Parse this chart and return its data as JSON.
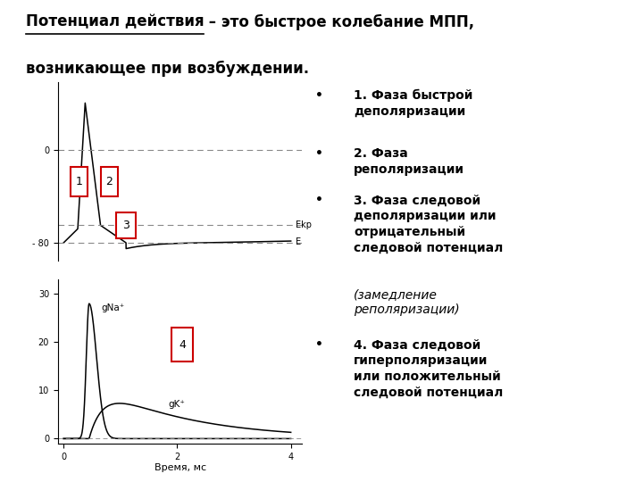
{
  "title_underlined": "Потенциал действия",
  "title_rest1": " – это быстрое колебание МПП,",
  "title_line2": "возникающее при возбуждении.",
  "Ekp_label": "Ekp",
  "E_label": "E",
  "gNa_label": "gNa⁺",
  "gK_label": "gK⁺",
  "xlabel": "Время, мс",
  "bg_color": "#ffffff",
  "line_color": "#000000",
  "dashed_color": "#888888",
  "box_color": "#cc0000",
  "ekp_val": -65,
  "e_val": -80,
  "ap_ylim_min": -95,
  "ap_ylim_max": 58,
  "cond_ylim_min": -1,
  "cond_ylim_max": 33,
  "xlim_min": 0,
  "xlim_max": 4,
  "title_fontsize": 12,
  "body_fontsize": 10
}
